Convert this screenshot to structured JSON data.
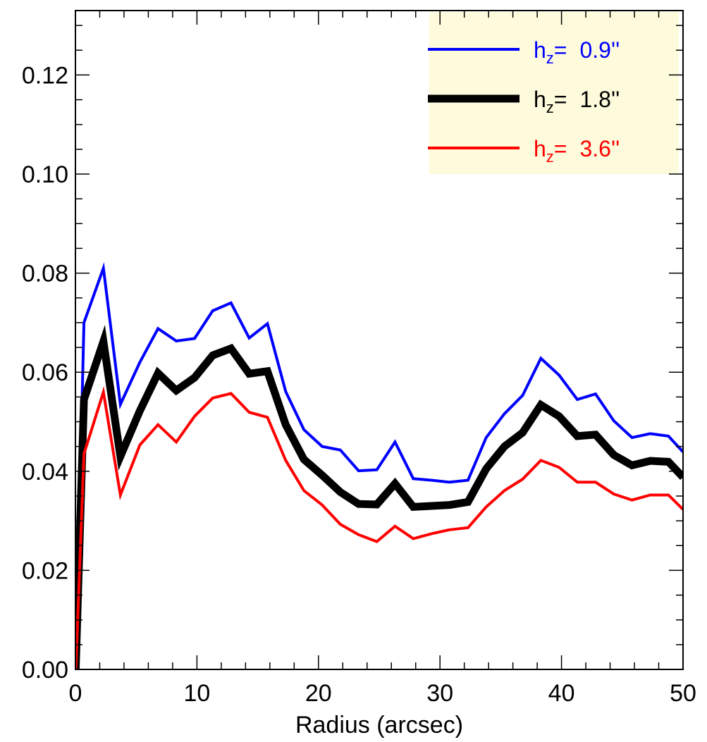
{
  "chart_data": {
    "type": "line",
    "title": "",
    "xlabel": "Radius (arcsec)",
    "ylabel": "",
    "xlim": [
      0,
      50
    ],
    "ylim": [
      0,
      0.133
    ],
    "xticks": [
      0,
      10,
      20,
      30,
      40,
      50
    ],
    "xtick_labels": [
      "0",
      "10",
      "20",
      "30",
      "40",
      "50"
    ],
    "yticks": [
      0,
      0.02,
      0.04,
      0.06,
      0.08,
      0.1,
      0.12
    ],
    "ytick_labels": [
      "0.00",
      "0.02",
      "0.04",
      "0.06",
      "0.08",
      "0.10",
      "0.12"
    ],
    "grid": false,
    "legend_position": "top-right",
    "legend_background": "#fdfbdc",
    "x": [
      0,
      0.7,
      2.3,
      3.7,
      5.3,
      6.8,
      8.3,
      9.8,
      11.3,
      12.8,
      14.3,
      15.8,
      17.3,
      18.8,
      20.3,
      21.8,
      23.3,
      24.8,
      26.3,
      27.8,
      29.3,
      30.8,
      32.3,
      33.8,
      35.3,
      36.8,
      38.3,
      39.8,
      41.3,
      42.8,
      44.3,
      45.8,
      47.3,
      48.8,
      50
    ],
    "series": [
      {
        "name": "0.9''",
        "label_prefix": "h",
        "label_sub": "z",
        "label_eq": "=",
        "color": "#0000ff",
        "line_width": 4,
        "values": [
          -0.002,
          0.07,
          0.081,
          0.0535,
          0.062,
          0.0688,
          0.0663,
          0.0668,
          0.0724,
          0.074,
          0.0669,
          0.0698,
          0.0561,
          0.0484,
          0.045,
          0.0443,
          0.0401,
          0.0403,
          0.0459,
          0.0385,
          0.0382,
          0.0378,
          0.0382,
          0.0468,
          0.0516,
          0.0553,
          0.0628,
          0.0594,
          0.0545,
          0.0556,
          0.0502,
          0.0468,
          0.0476,
          0.0471,
          0.0439
        ]
      },
      {
        "name": "1.8''",
        "label_prefix": "h",
        "label_sub": "z",
        "label_eq": "=",
        "color": "#000000",
        "line_width": 11,
        "values": [
          -0.002,
          0.0545,
          0.0662,
          0.043,
          0.0522,
          0.0598,
          0.0563,
          0.0589,
          0.0634,
          0.0648,
          0.0597,
          0.0602,
          0.0494,
          0.0424,
          0.0392,
          0.0358,
          0.0334,
          0.0333,
          0.0375,
          0.0328,
          0.033,
          0.0332,
          0.0338,
          0.0405,
          0.045,
          0.0478,
          0.0534,
          0.0511,
          0.0471,
          0.0474,
          0.0433,
          0.0412,
          0.0421,
          0.0419,
          0.0388
        ]
      },
      {
        "name": "3.6''",
        "label_prefix": "h",
        "label_sub": "z",
        "label_eq": "=",
        "color": "#ff0000",
        "line_width": 4,
        "values": [
          -0.002,
          0.0435,
          0.056,
          0.0352,
          0.0453,
          0.0494,
          0.0459,
          0.0511,
          0.0548,
          0.0557,
          0.0519,
          0.0509,
          0.0422,
          0.0361,
          0.0332,
          0.0293,
          0.0272,
          0.0258,
          0.0289,
          0.0264,
          0.0274,
          0.0282,
          0.0286,
          0.0328,
          0.0361,
          0.0384,
          0.0422,
          0.0408,
          0.0378,
          0.0378,
          0.0354,
          0.0342,
          0.0352,
          0.0352,
          0.0323
        ]
      }
    ]
  }
}
